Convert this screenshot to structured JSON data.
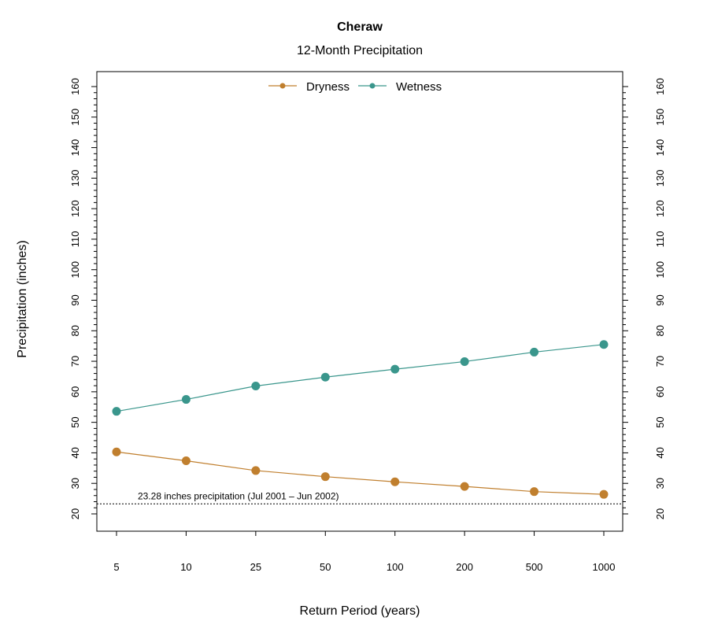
{
  "chart_data": {
    "type": "line",
    "title": "Cheraw",
    "subtitle": "12-Month Precipitation",
    "xlabel": "Return Period (years)",
    "ylabel": "Precipitation (inches)",
    "categories": [
      "5",
      "10",
      "25",
      "50",
      "100",
      "200",
      "500",
      "1000"
    ],
    "series": [
      {
        "name": "Dryness",
        "color": "#C07F2E",
        "values": [
          40.3,
          37.4,
          34.2,
          32.2,
          30.5,
          29.0,
          27.3,
          26.4
        ]
      },
      {
        "name": "Wetness",
        "color": "#3A968C",
        "values": [
          53.6,
          57.5,
          61.9,
          64.8,
          67.4,
          69.9,
          73.0,
          75.5
        ]
      }
    ],
    "ylim": [
      15,
      165
    ],
    "yticks": [
      20,
      30,
      40,
      50,
      60,
      70,
      80,
      90,
      100,
      110,
      120,
      130,
      140,
      150,
      160
    ],
    "y_minor_step": 2,
    "reference_line": {
      "value": 23.28,
      "label": "23.28 inches precipitation (Jul 2001 – Jun 2002)",
      "style": "dotted"
    },
    "legend_position": "top-center",
    "grid": false
  }
}
